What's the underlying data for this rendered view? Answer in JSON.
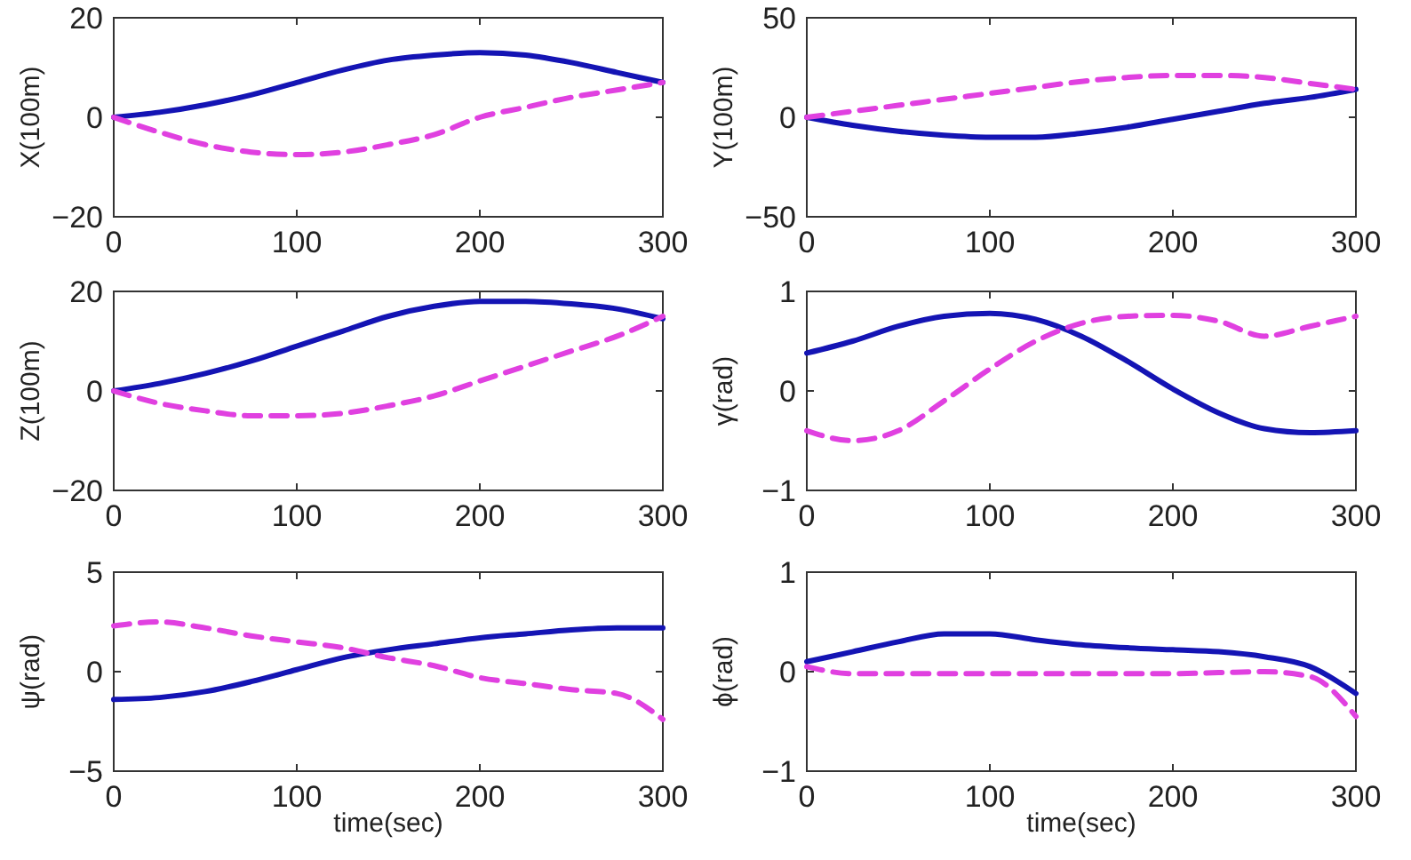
{
  "chart_data": [
    {
      "type": "line",
      "ylabel": "X(100m)",
      "x": [
        0,
        25,
        50,
        75,
        100,
        125,
        150,
        175,
        200,
        225,
        250,
        275,
        300
      ],
      "xlim": [
        0,
        300
      ],
      "xticks": [
        0,
        100,
        200,
        300
      ],
      "ylim": [
        -20,
        20
      ],
      "yticks": [
        -20,
        0,
        20
      ],
      "series": [
        {
          "color": "#1414b4",
          "line_style": "solid",
          "values": [
            0,
            1,
            2.5,
            4.5,
            7,
            9.5,
            11.5,
            12.5,
            13,
            12.5,
            11,
            9,
            7
          ]
        },
        {
          "color": "#e040e0",
          "line_style": "dashed",
          "values": [
            0,
            -3,
            -5.5,
            -7,
            -7.5,
            -7,
            -5.5,
            -3.5,
            0,
            2,
            4,
            5.5,
            7
          ]
        }
      ]
    },
    {
      "type": "line",
      "ylabel": "Y(100m)",
      "x": [
        0,
        25,
        50,
        75,
        100,
        125,
        150,
        175,
        200,
        225,
        250,
        275,
        300
      ],
      "xlim": [
        0,
        300
      ],
      "xticks": [
        0,
        100,
        200,
        300
      ],
      "ylim": [
        -50,
        50
      ],
      "yticks": [
        -50,
        0,
        50
      ],
      "series": [
        {
          "color": "#1414b4",
          "line_style": "solid",
          "values": [
            0,
            -4,
            -7,
            -9,
            -10,
            -10,
            -8,
            -5,
            -1,
            3,
            7,
            10,
            14
          ]
        },
        {
          "color": "#e040e0",
          "line_style": "dashed",
          "values": [
            0,
            3,
            6,
            9,
            12,
            15,
            18,
            20,
            21,
            21,
            20,
            17,
            14
          ]
        }
      ]
    },
    {
      "type": "line",
      "ylabel": "Z(100m)",
      "x": [
        0,
        25,
        50,
        75,
        100,
        125,
        150,
        175,
        200,
        225,
        250,
        275,
        300
      ],
      "xlim": [
        0,
        300
      ],
      "xticks": [
        0,
        100,
        200,
        300
      ],
      "ylim": [
        -20,
        20
      ],
      "yticks": [
        -20,
        0,
        20
      ],
      "series": [
        {
          "color": "#1414b4",
          "line_style": "solid",
          "values": [
            0,
            1.5,
            3.5,
            6,
            9,
            12,
            15,
            17,
            18,
            18,
            17.5,
            16.5,
            14.5
          ]
        },
        {
          "color": "#e040e0",
          "line_style": "dashed",
          "values": [
            0,
            -2.5,
            -4,
            -5,
            -5,
            -4.5,
            -3,
            -1,
            2,
            5,
            8,
            11,
            15
          ]
        }
      ]
    },
    {
      "type": "line",
      "ylabel": "γ(rad)",
      "x": [
        0,
        25,
        50,
        75,
        100,
        125,
        150,
        175,
        200,
        225,
        250,
        275,
        300
      ],
      "xlim": [
        0,
        300
      ],
      "xticks": [
        0,
        100,
        200,
        300
      ],
      "ylim": [
        -1,
        1
      ],
      "yticks": [
        -1,
        0,
        1
      ],
      "series": [
        {
          "color": "#1414b4",
          "line_style": "solid",
          "values": [
            0.38,
            0.5,
            0.65,
            0.75,
            0.78,
            0.72,
            0.55,
            0.3,
            0.02,
            -0.22,
            -0.38,
            -0.42,
            -0.4
          ]
        },
        {
          "color": "#e040e0",
          "line_style": "dashed",
          "values": [
            -0.4,
            -0.5,
            -0.4,
            -0.1,
            0.22,
            0.5,
            0.68,
            0.75,
            0.76,
            0.7,
            0.55,
            0.65,
            0.75
          ]
        }
      ]
    },
    {
      "type": "line",
      "ylabel": "ψ(rad)",
      "xlabel": "time(sec)",
      "x": [
        0,
        25,
        50,
        75,
        100,
        125,
        150,
        175,
        200,
        225,
        250,
        275,
        300
      ],
      "xlim": [
        0,
        300
      ],
      "xticks": [
        0,
        100,
        200,
        300
      ],
      "ylim": [
        -5,
        5
      ],
      "yticks": [
        -5,
        0,
        5
      ],
      "series": [
        {
          "color": "#1414b4",
          "line_style": "solid",
          "values": [
            -1.4,
            -1.3,
            -1,
            -0.5,
            0.1,
            0.7,
            1.1,
            1.4,
            1.7,
            1.9,
            2.1,
            2.2,
            2.2
          ]
        },
        {
          "color": "#e040e0",
          "line_style": "dashed",
          "values": [
            2.3,
            2.5,
            2.2,
            1.8,
            1.5,
            1.2,
            0.7,
            0.3,
            -0.3,
            -0.6,
            -0.9,
            -1.1,
            -2.4
          ]
        }
      ]
    },
    {
      "type": "line",
      "ylabel": "ϕ(rad)",
      "xlabel": "time(sec)",
      "x": [
        0,
        25,
        50,
        75,
        100,
        125,
        150,
        175,
        200,
        225,
        250,
        275,
        300
      ],
      "xlim": [
        0,
        300
      ],
      "xticks": [
        0,
        100,
        200,
        300
      ],
      "ylim": [
        -1,
        1
      ],
      "yticks": [
        -1,
        0,
        1
      ],
      "series": [
        {
          "color": "#1414b4",
          "line_style": "solid",
          "values": [
            0.1,
            0.2,
            0.3,
            0.38,
            0.38,
            0.32,
            0.27,
            0.24,
            0.22,
            0.2,
            0.15,
            0.05,
            -0.22
          ]
        },
        {
          "color": "#e040e0",
          "line_style": "dashed",
          "values": [
            0.05,
            -0.02,
            -0.02,
            -0.02,
            -0.02,
            -0.02,
            -0.02,
            -0.02,
            -0.02,
            -0.01,
            0,
            -0.05,
            -0.45
          ]
        }
      ]
    }
  ]
}
